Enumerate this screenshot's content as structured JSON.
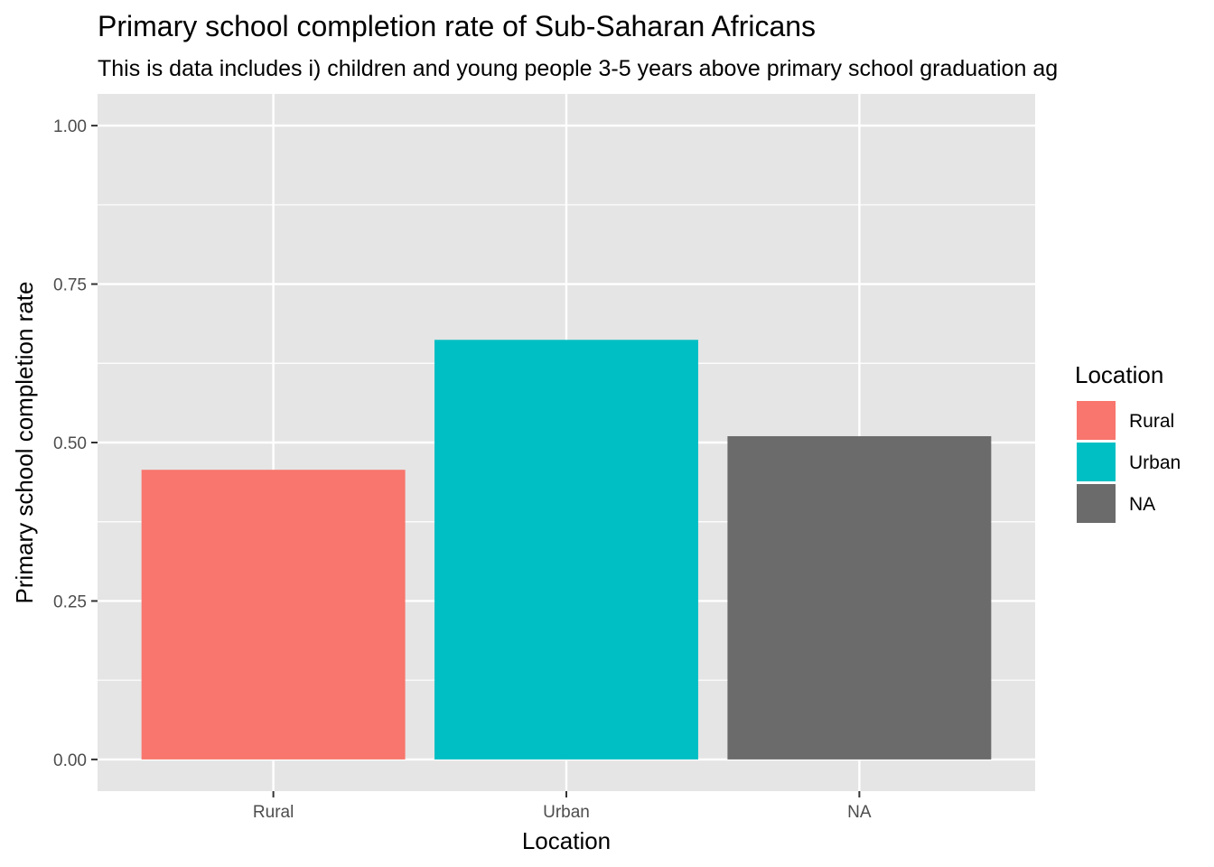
{
  "chart_data": {
    "type": "bar",
    "title": "Primary school completion rate of Sub-Saharan Africans",
    "subtitle": "This is data includes i) children and young people 3-5 years above primary school graduation ag",
    "xlabel": "Location",
    "ylabel": "Primary school completion rate",
    "categories": [
      "Rural",
      "Urban",
      "NA"
    ],
    "values": [
      0.457,
      0.662,
      0.51
    ],
    "colors": [
      "#f8766d",
      "#00bfc4",
      "#6b6b6b"
    ],
    "ylim": [
      -0.05,
      1.05
    ],
    "yticks": [
      0.0,
      0.25,
      0.5,
      0.75,
      1.0
    ],
    "ytick_labels": [
      "0.00",
      "0.25",
      "0.50",
      "0.75",
      "1.00"
    ],
    "grid": true,
    "panel_color": "#e5e5e5",
    "legend": {
      "title": "Location",
      "position": "right",
      "entries": [
        "Rural",
        "Urban",
        "NA"
      ]
    }
  }
}
